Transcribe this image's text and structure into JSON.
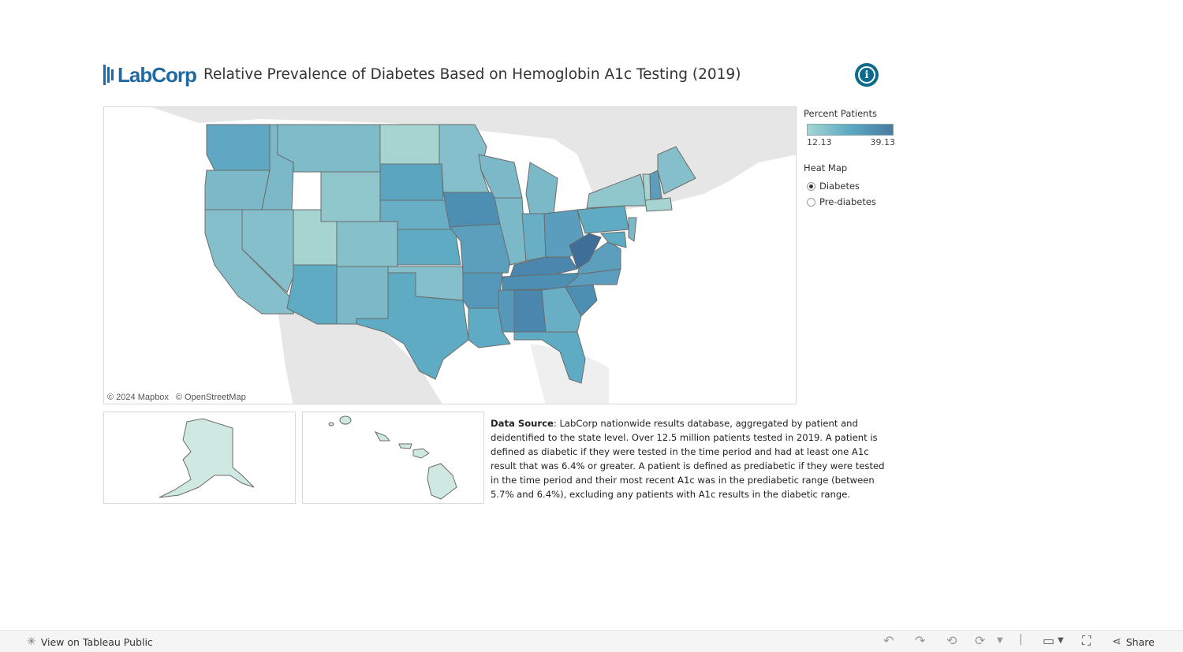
{
  "header": {
    "logo_text": "LabCorp",
    "title": "Relative Prevalence of Diabetes Based on Hemoglobin A1c Testing (2019)",
    "info_icon": "info-icon"
  },
  "map": {
    "attribution": [
      "© 2024 Mapbox",
      "© OpenStreetMap"
    ],
    "colors": {
      "low": "#a6d4d4",
      "mid": "#5aa9c2",
      "high": "#4a7aa0",
      "land": "#e6e6e6",
      "border": "#6b6b6b"
    }
  },
  "legend": {
    "title": "Percent Patients",
    "min_label": "12.13",
    "max_label": "39.13"
  },
  "heatmap": {
    "title": "Heat Map",
    "options": [
      {
        "label": "Diabetes",
        "selected": true
      },
      {
        "label": "Pre-diabetes",
        "selected": false
      }
    ]
  },
  "source": {
    "label": "Data Source",
    "text": ": LabCorp nationwide results database, aggregated by patient and deidentified to the state level. Over 12.5 million patients tested in 2019. A patient is defined as diabetic if they were tested in the time period and had at least one A1c result that was 6.4% or greater. A patient is defined as prediabetic if they were tested in the time period and their most recent A1c was in the prediabetic range (between 5.7% and 6.4%), excluding any patients with A1c results in the diabetic range."
  },
  "toolbar": {
    "view_label": "View on Tableau Public",
    "share_label": "Share"
  }
}
